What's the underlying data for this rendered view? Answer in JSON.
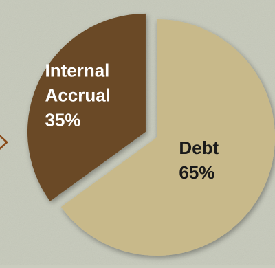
{
  "chart_data": {
    "type": "pie",
    "categories": [
      "Debt",
      "Internal Accrual"
    ],
    "values": [
      65,
      35
    ],
    "value_labels": [
      "65%",
      "35%"
    ],
    "label_lines": [
      [
        "Debt"
      ],
      [
        "Internal",
        "Accrual"
      ]
    ],
    "title": "",
    "legend": "none",
    "exploded": "Internal Accrual",
    "start": "12 o'clock",
    "direction": "clockwise"
  },
  "colors": {
    "background": "#c9ccbe",
    "debt_slice": "#c8b98a",
    "internal_accrual_slice": "#6a4a28",
    "debt_label": "#1a1a1a",
    "internal_accrual_label": "#ffffff",
    "left_marker": "#8a4a18"
  }
}
